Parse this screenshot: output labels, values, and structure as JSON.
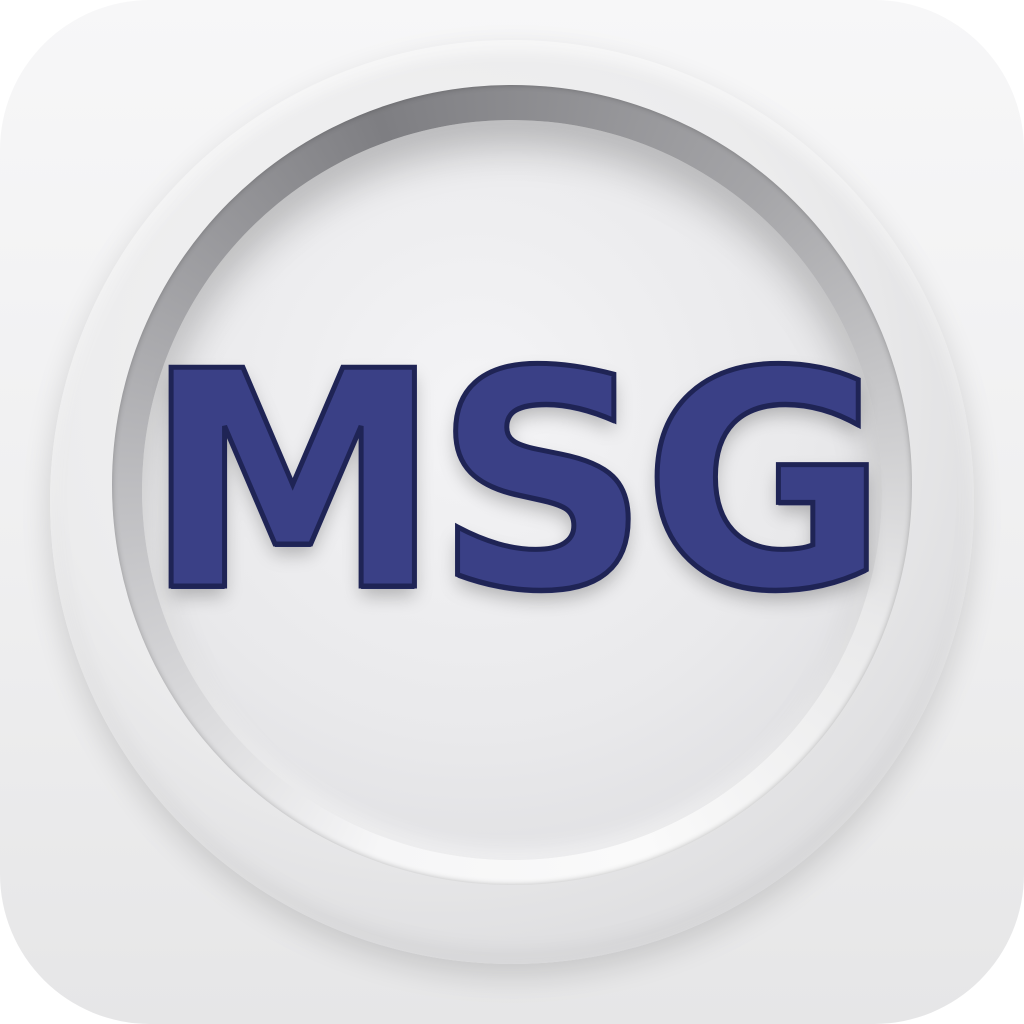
{
  "logo": {
    "text": "MSG",
    "text_color": "#3a4086",
    "outline_color": "#1f2455"
  },
  "icon": {
    "type": "app-icon",
    "background_color": "#efeff0"
  }
}
